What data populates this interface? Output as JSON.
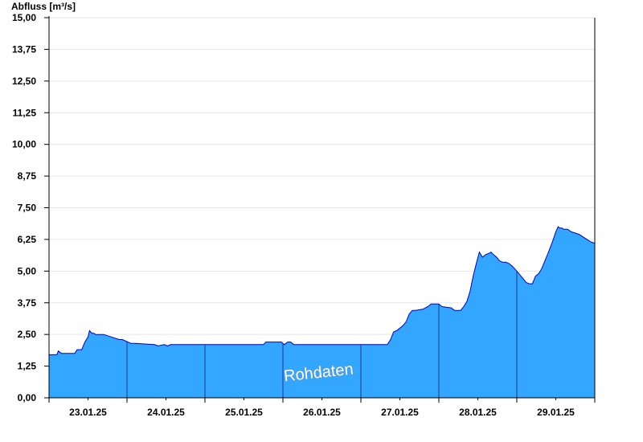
{
  "chart_data": {
    "type": "area",
    "ylabel": "Abfluss [m³/s]",
    "ylim": [
      0,
      15
    ],
    "yticks": [
      "0,00",
      "1,25",
      "2,50",
      "3,75",
      "5,00",
      "6,25",
      "7,50",
      "8,75",
      "10,00",
      "11,25",
      "12,50",
      "13,75",
      "15,00"
    ],
    "xticks": [
      "23.01.25",
      "24.01.25",
      "25.01.25",
      "26.01.25",
      "27.01.25",
      "28.01.25",
      "29.01.25"
    ],
    "x_range_days": [
      0,
      7
    ],
    "watermark": "Rohdaten",
    "grid": true,
    "colors": {
      "fill": "#33a6ff",
      "line": "#0000cc",
      "daydivider": "#1a3c8c"
    },
    "series": [
      {
        "x": [
          0,
          0.1,
          0.12,
          0.16,
          0.18,
          0.33,
          0.36,
          0.42,
          0.46,
          0.5,
          0.52,
          0.55,
          0.57,
          0.6,
          0.7,
          0.8,
          0.9,
          0.94,
          1.05,
          1.1,
          1.35,
          1.4,
          1.48,
          1.52,
          1.56,
          1.6,
          2.0,
          2.5,
          2.75,
          2.78,
          2.98,
          3.02,
          3.06,
          3.1,
          3.14,
          3.18,
          3.5,
          4.0,
          4.3,
          4.34,
          4.38,
          4.42,
          4.46,
          4.5,
          4.54,
          4.58,
          4.62,
          4.66,
          4.7,
          4.8,
          4.86,
          4.9,
          5.0,
          5.04,
          5.16,
          5.2,
          5.28,
          5.32,
          5.36,
          5.4,
          5.44,
          5.48,
          5.52,
          5.56,
          5.6,
          5.64,
          5.67,
          5.7,
          5.74,
          5.78,
          5.82,
          5.86,
          5.9,
          5.94,
          6.0,
          6.04,
          6.08,
          6.12,
          6.16,
          6.2,
          6.24,
          6.28,
          6.32,
          6.36,
          6.4,
          6.45,
          6.5,
          6.53,
          6.55,
          6.58,
          6.6,
          6.65,
          6.7,
          6.75,
          6.8,
          6.85,
          6.9,
          6.95,
          7.0
        ],
        "y": [
          1.7,
          1.7,
          1.85,
          1.75,
          1.75,
          1.75,
          1.9,
          1.9,
          2.2,
          2.4,
          2.65,
          2.55,
          2.55,
          2.5,
          2.5,
          2.4,
          2.3,
          2.3,
          2.15,
          2.15,
          2.1,
          2.05,
          2.1,
          2.05,
          2.1,
          2.1,
          2.1,
          2.1,
          2.1,
          2.2,
          2.2,
          2.1,
          2.2,
          2.2,
          2.1,
          2.1,
          2.1,
          2.1,
          2.1,
          2.1,
          2.3,
          2.6,
          2.65,
          2.75,
          2.85,
          3.0,
          3.3,
          3.45,
          3.45,
          3.5,
          3.6,
          3.7,
          3.7,
          3.6,
          3.55,
          3.45,
          3.45,
          3.6,
          3.8,
          4.2,
          4.8,
          5.3,
          5.75,
          5.55,
          5.65,
          5.7,
          5.75,
          5.65,
          5.55,
          5.4,
          5.35,
          5.35,
          5.3,
          5.2,
          5.0,
          4.85,
          4.7,
          4.55,
          4.5,
          4.5,
          4.8,
          4.9,
          5.1,
          5.4,
          5.7,
          6.1,
          6.55,
          6.75,
          6.7,
          6.7,
          6.65,
          6.65,
          6.55,
          6.5,
          6.45,
          6.35,
          6.25,
          6.15,
          6.1
        ]
      }
    ]
  }
}
